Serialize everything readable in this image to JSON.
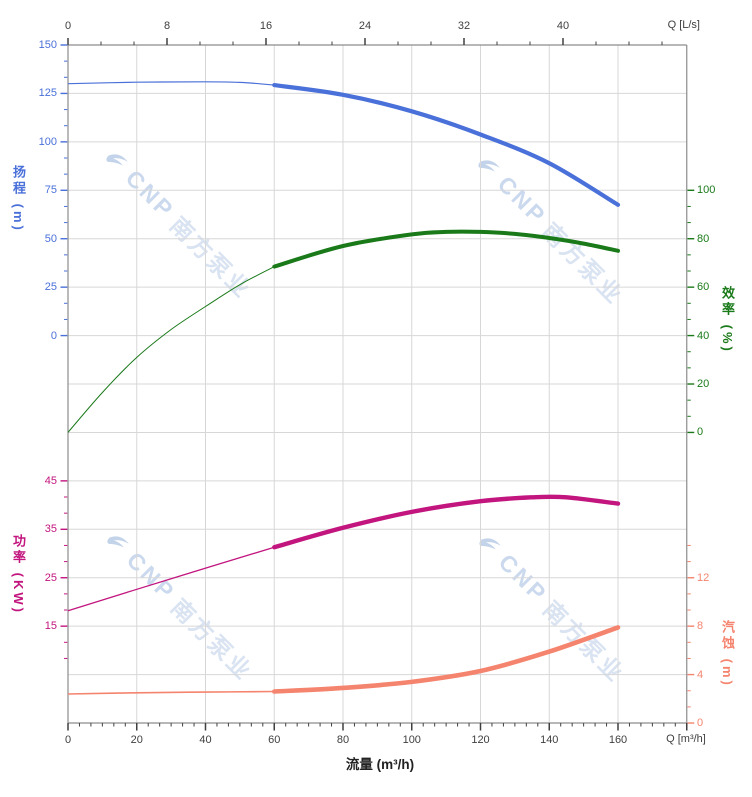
{
  "watermark": {
    "brand": "CNP",
    "name": "南方泵业"
  },
  "chart_data": {
    "type": "line",
    "x_axis_bottom": {
      "title": "流量 (m³/h)",
      "unit": "Q [m³/h]",
      "tick_labels": [
        "0",
        "20",
        "40",
        "60",
        "80",
        "100",
        "120",
        "140",
        "160"
      ],
      "range": [
        0,
        180
      ]
    },
    "x_axis_top": {
      "unit": "Q [L/s]",
      "tick_labels": [
        "0",
        "8",
        "16",
        "24",
        "32",
        "40"
      ],
      "range": [
        0,
        50
      ]
    },
    "y_axes": {
      "head": {
        "title": "扬程 (m)",
        "color": "#4a70d9",
        "tick_labels": [
          "150",
          "125",
          "100",
          "75",
          "50",
          "25",
          "0"
        ],
        "range": [
          0,
          150
        ]
      },
      "eff": {
        "title": "效率 (%)",
        "color": "#1a7a1a",
        "tick_labels": [
          "100",
          "80",
          "60",
          "40",
          "20",
          "0"
        ],
        "range": [
          0,
          100
        ]
      },
      "power": {
        "title": "功率 (KW)",
        "color": "#c2157e",
        "tick_labels": [
          "45",
          "35",
          "25",
          "15"
        ],
        "range": [
          15,
          45
        ]
      },
      "npsh": {
        "title": "汽蚀 (m)",
        "color": "#f5846e",
        "tick_labels": [
          "12",
          "8",
          "4",
          "0"
        ],
        "range": [
          0,
          12
        ]
      }
    },
    "series": [
      {
        "name": "head",
        "unit": "m",
        "color": "#4a70d9",
        "thin_until_q": 60,
        "points": [
          [
            0,
            130
          ],
          [
            20,
            130.8
          ],
          [
            40,
            131
          ],
          [
            50,
            130.7
          ],
          [
            60,
            129.3
          ],
          [
            80,
            124.3
          ],
          [
            100,
            115.8
          ],
          [
            120,
            103.8
          ],
          [
            140,
            89
          ],
          [
            160,
            67.5
          ]
        ]
      },
      {
        "name": "efficiency",
        "unit": "%",
        "color": "#1a7a1a",
        "thin_until_q": 60,
        "points": [
          [
            0,
            0
          ],
          [
            10,
            16.5
          ],
          [
            20,
            31
          ],
          [
            30,
            42.5
          ],
          [
            40,
            52
          ],
          [
            50,
            61
          ],
          [
            60,
            68.5
          ],
          [
            80,
            77
          ],
          [
            100,
            81.8
          ],
          [
            110,
            82.8
          ],
          [
            120,
            82.8
          ],
          [
            130,
            82
          ],
          [
            140,
            80.3
          ],
          [
            150,
            78
          ],
          [
            160,
            75
          ]
        ]
      },
      {
        "name": "power",
        "unit": "KW",
        "color": "#c2157e",
        "thin_until_q": 60,
        "points": [
          [
            0,
            18.2
          ],
          [
            30,
            24.8
          ],
          [
            60,
            31.3
          ],
          [
            80,
            35.3
          ],
          [
            100,
            38.6
          ],
          [
            120,
            40.8
          ],
          [
            135,
            41.6
          ],
          [
            145,
            41.6
          ],
          [
            160,
            40.3
          ]
        ]
      },
      {
        "name": "npsh",
        "unit": "m",
        "color": "#f5846e",
        "thin_until_q": 60,
        "points": [
          [
            0,
            2.4
          ],
          [
            20,
            2.5
          ],
          [
            40,
            2.55
          ],
          [
            60,
            2.6
          ],
          [
            80,
            2.9
          ],
          [
            100,
            3.4
          ],
          [
            120,
            4.3
          ],
          [
            140,
            5.9
          ],
          [
            160,
            7.9
          ]
        ]
      }
    ],
    "grid": true,
    "legend": "none"
  },
  "style": {
    "grid_color": "#d7d7d7",
    "spine_color": "#8c8c8c",
    "dark_tick_color": "#3f3f3f"
  }
}
